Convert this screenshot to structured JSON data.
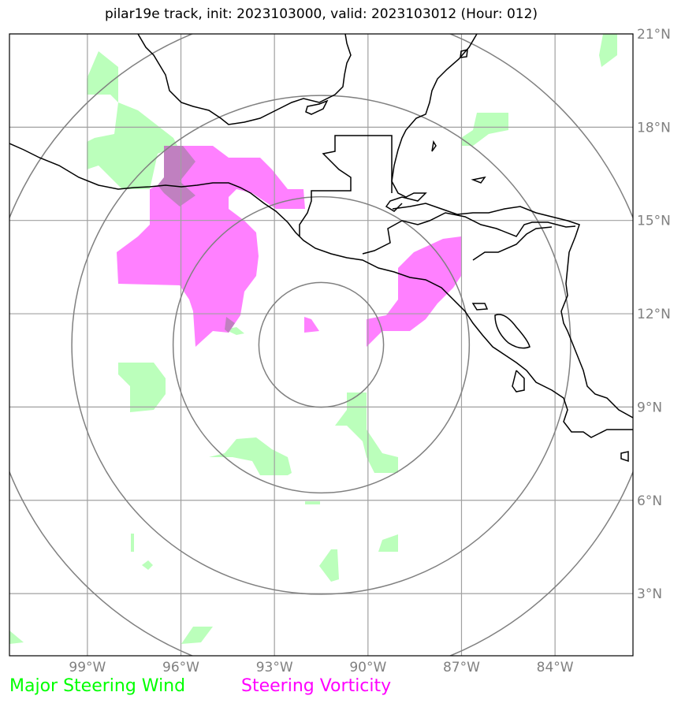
{
  "title": "pilar19e track, init: 2023103000, valid: 2023103012 (Hour: 012)",
  "legend": {
    "wind_label": "Major Steering Wind",
    "wind_color": "#00ff00",
    "vorticity_label": "Steering Vorticity",
    "vorticity_color": "#ff00ff"
  },
  "lat_labels": [
    "3°N",
    "6°N",
    "9°N",
    "12°N",
    "15°N",
    "18°N",
    "21°N"
  ],
  "lon_labels": [
    "99°W",
    "96°W",
    "93°W",
    "90°W",
    "87°W",
    "84°W"
  ],
  "colors": {
    "wind_fill": "#bbffbb",
    "vorticity_fill": "#ff80ff",
    "overlap_fill": "#c080c0",
    "coast": "#000000",
    "grid": "#a0a0a0",
    "range_ring": "#808080"
  },
  "map": {
    "extent": {
      "lon_min": -101.5,
      "lon_max": -81.5,
      "lat_min": 1,
      "lat_max": 21
    },
    "storm_center": {
      "lon": -91.5,
      "lat": 11
    },
    "range_rings_deg": [
      2,
      4.75,
      8,
      10.8
    ]
  }
}
